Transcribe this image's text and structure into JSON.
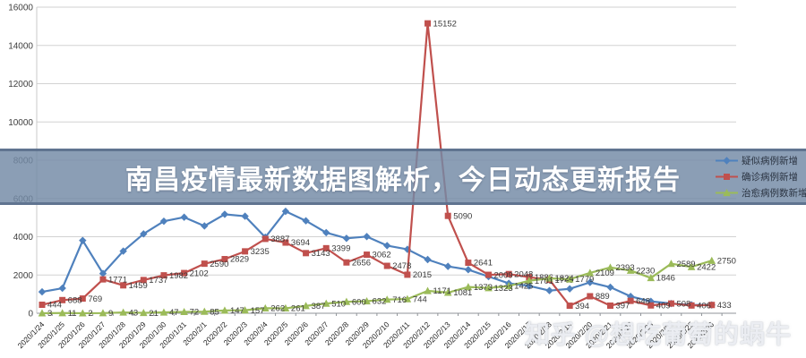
{
  "banner": {
    "title": "南昌疫情最新数据图解析，今日动态更新报告"
  },
  "watermark": {
    "text": "知乎 @想吃葡萄的蜗牛"
  },
  "chart_data": {
    "type": "line",
    "title": "",
    "xlabel": "",
    "ylabel": "",
    "ylim": [
      0,
      16000
    ],
    "ytick_step": 2000,
    "grid": true,
    "legend_position": "right",
    "x": [
      "2020/1/24",
      "2020/1/25",
      "2020/1/26",
      "2020/1/27",
      "2020/1/28",
      "2020/1/29",
      "2020/1/30",
      "2020/1/31",
      "2020/2/1",
      "2020/2/2",
      "2020/2/3",
      "2020/2/4",
      "2020/2/5",
      "2020/2/6",
      "2020/2/7",
      "2020/2/8",
      "2020/2/9",
      "2020/2/10",
      "2020/2/11",
      "2020/2/12",
      "2020/2/13",
      "2020/2/14",
      "2020/2/15",
      "2020/2/16",
      "2020/2/17",
      "2020/2/18",
      "2020/2/19",
      "2020/2/20",
      "2020/2/21",
      "2020/2/22",
      "2020/2/23",
      "2020/2/24",
      "2020/2/25",
      "2020/2/26"
    ],
    "series": [
      {
        "name": "疑似病例新增",
        "color": "#4F81BD",
        "marker": "diamond",
        "data_labels": false,
        "values": [
          1118,
          1309,
          3806,
          2077,
          3248,
          4148,
          4812,
          5019,
          4562,
          5173,
          5072,
          3971,
          5328,
          4833,
          4214,
          3916,
          4008,
          3536,
          3342,
          2807,
          2450,
          2277,
          1918,
          1563,
          1432,
          1185,
          1277,
          1614,
          1361,
          882,
          620,
          508,
          439,
          433
        ]
      },
      {
        "name": "确诊病例新增",
        "color": "#C0504D",
        "marker": "square",
        "data_labels": true,
        "values": [
          444,
          688,
          769,
          1771,
          1459,
          1737,
          1982,
          2102,
          2590,
          2829,
          3235,
          3887,
          3694,
          3143,
          3399,
          2656,
          3062,
          2478,
          2015,
          15152,
          5090,
          2641,
          2009,
          2048,
          1886,
          1749,
          394,
          889,
          397,
          648,
          409,
          508,
          406,
          433
        ]
      },
      {
        "name": "治愈病例数新增",
        "color": "#9BBB59",
        "marker": "triangle",
        "data_labels": true,
        "values": [
          3,
          11,
          2,
          9,
          43,
          21,
          47,
          72,
          85,
          147,
          157,
          262,
          261,
          387,
          510,
          600,
          632,
          716,
          744,
          1171,
          1081,
          1373,
          1323,
          1425,
          1701,
          1824,
          1779,
          2109,
          2393,
          2230,
          1846,
          2589,
          2422,
          2750
        ]
      }
    ]
  }
}
